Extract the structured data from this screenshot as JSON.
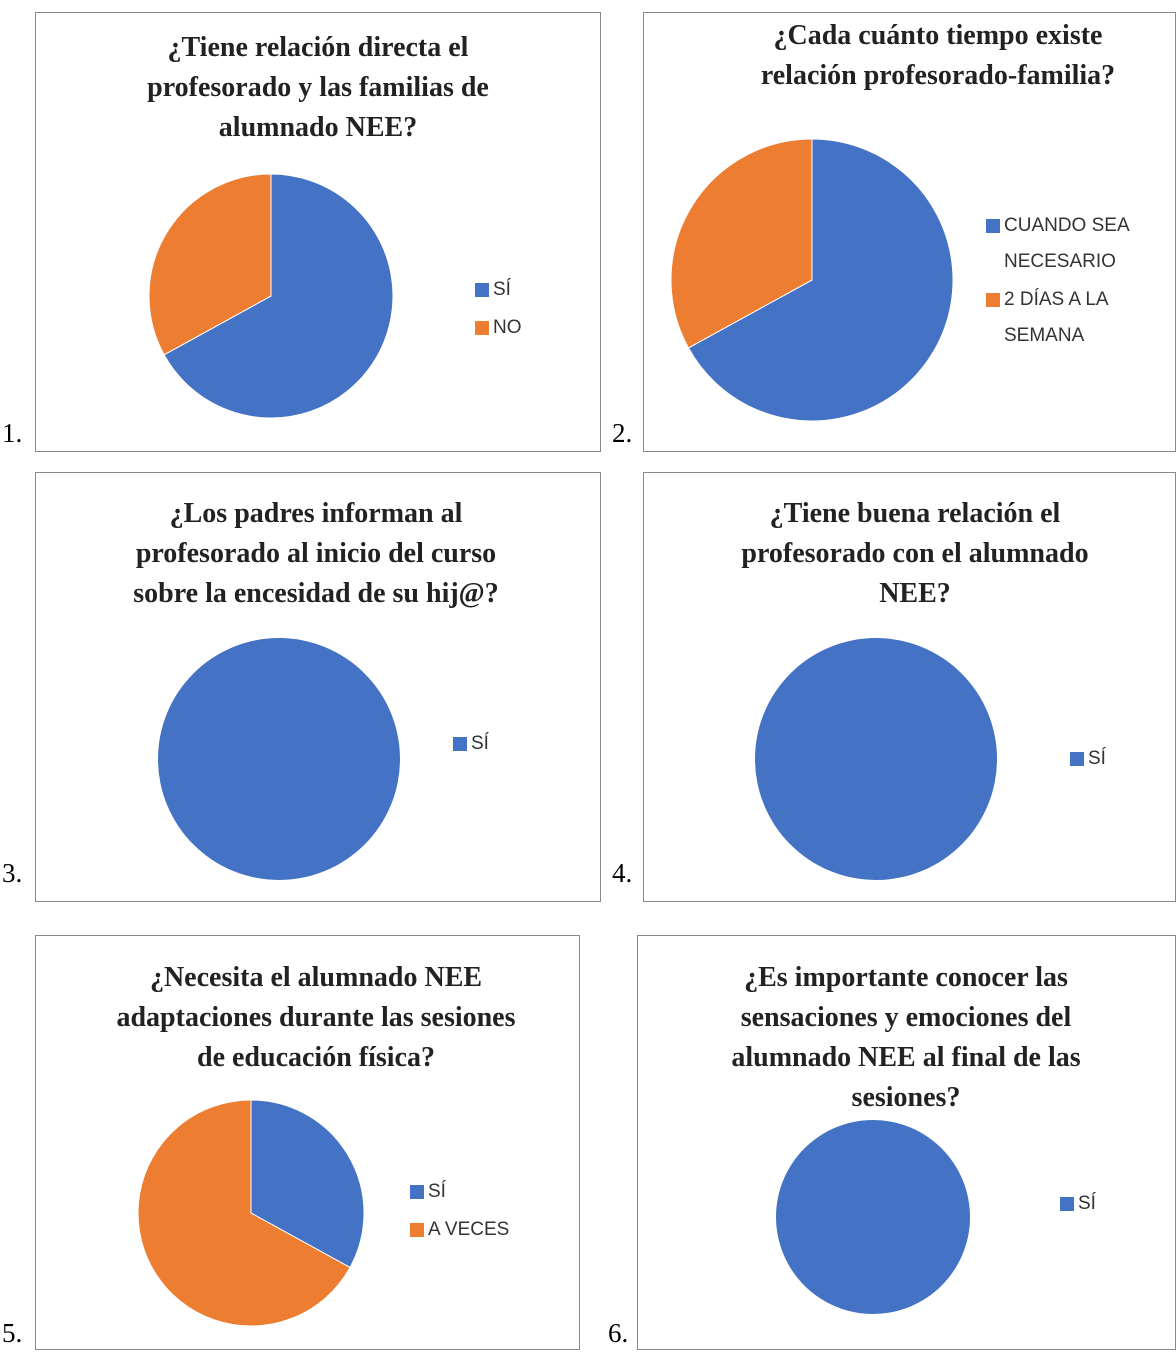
{
  "chart_data": [
    {
      "type": "pie",
      "number": "1.",
      "title": "¿Tiene relación directa el profesorado y las familias de alumnado NEE?",
      "categories": [
        "SÍ",
        "NO"
      ],
      "values": [
        67,
        33
      ],
      "colors": [
        "#4472c4",
        "#ed7d31"
      ]
    },
    {
      "type": "pie",
      "number": "2.",
      "title": "¿Cada cuánto tiempo existe relación profesorado-familia?",
      "categories": [
        "CUANDO SEA NECESARIO",
        "2 DÍAS A LA SEMANA"
      ],
      "values": [
        67,
        33
      ],
      "colors": [
        "#4472c4",
        "#ed7d31"
      ]
    },
    {
      "type": "pie",
      "number": "3.",
      "title": "¿Los padres informan al profesorado al inicio del curso sobre la encesidad de su hij@?",
      "categories": [
        "SÍ"
      ],
      "values": [
        100
      ],
      "colors": [
        "#4472c4"
      ]
    },
    {
      "type": "pie",
      "number": "4.",
      "title": "¿Tiene buena relación el profesorado con el alumnado NEE?",
      "categories": [
        "SÍ"
      ],
      "values": [
        100
      ],
      "colors": [
        "#4472c4"
      ]
    },
    {
      "type": "pie",
      "number": "5.",
      "title": "¿Necesita el alumnado NEE adaptaciones durante las sesiones de educación física?",
      "categories": [
        "SÍ",
        "A VECES"
      ],
      "values": [
        33,
        67
      ],
      "colors": [
        "#4472c4",
        "#ed7d31"
      ]
    },
    {
      "type": "pie",
      "number": "6.",
      "title": "¿Es importante conocer las sensaciones y emociones del alumnado NEE al final de las sesiones?",
      "categories": [
        "SÍ"
      ],
      "values": [
        100
      ],
      "colors": [
        "#4472c4"
      ]
    }
  ]
}
